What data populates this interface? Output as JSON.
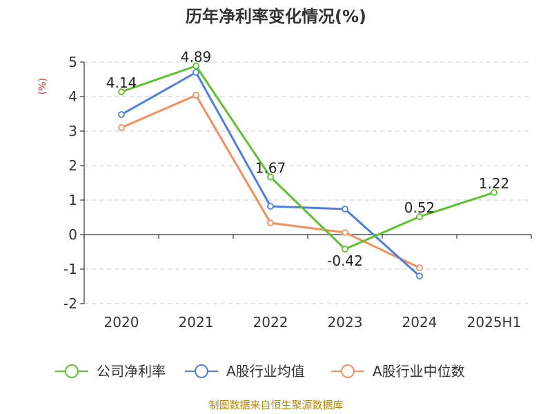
{
  "chart_data": {
    "type": "line",
    "title": "历年净利率变化情况(%)",
    "ylabel": "(%)",
    "categories": [
      "2020",
      "2021",
      "2022",
      "2023",
      "2024",
      "2025H1"
    ],
    "ylim": [
      -2,
      5
    ],
    "yticks": [
      -2,
      -1,
      0,
      1,
      2,
      3,
      4,
      5
    ],
    "grid": true,
    "legend_position": "bottom",
    "series": [
      {
        "name": "公司净利率",
        "color": "#5ec12e",
        "values": [
          4.14,
          4.89,
          1.67,
          -0.42,
          0.52,
          1.22
        ],
        "labels": [
          "4.14",
          "4.89",
          "1.67",
          "-0.42",
          "0.52",
          "1.22"
        ]
      },
      {
        "name": "A股行业均值",
        "color": "#4e7fe0",
        "values": [
          3.48,
          4.7,
          0.82,
          0.74,
          -1.2,
          null
        ]
      },
      {
        "name": "A股行业中位数",
        "color": "#f68e5b",
        "values": [
          3.1,
          4.04,
          0.34,
          0.06,
          -0.96,
          null
        ]
      }
    ]
  },
  "footer": {
    "source": "制图数据来自恒生聚源数据库"
  }
}
